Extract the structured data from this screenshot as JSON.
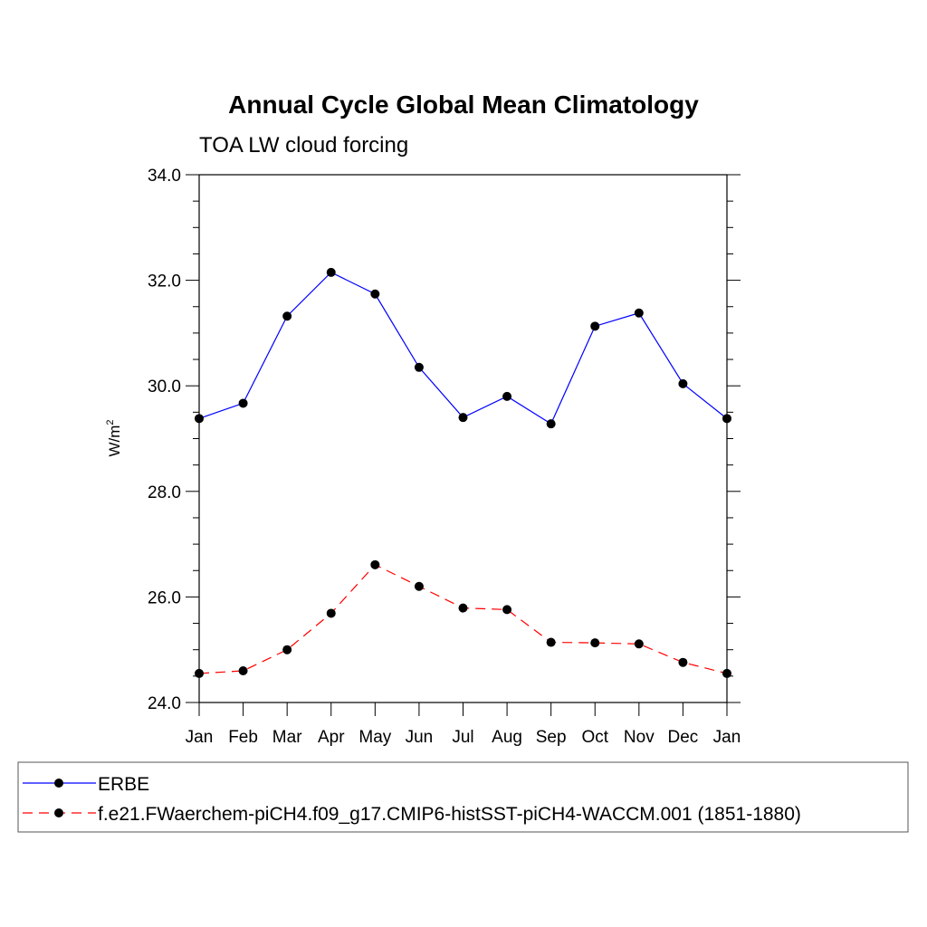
{
  "chart_data": {
    "type": "line",
    "title": "Annual Cycle Global Mean Climatology",
    "subtitle": "TOA LW cloud forcing",
    "ylabel_base": "W/m",
    "ylabel_sup": "2",
    "ylim": [
      24.0,
      34.0
    ],
    "y_ticks": [
      "24.0",
      "26.0",
      "28.0",
      "30.0",
      "32.0",
      "34.0"
    ],
    "y_tick_values": [
      24,
      26,
      28,
      30,
      32,
      34
    ],
    "y_minor_step": 0.5,
    "categories": [
      "Jan",
      "Feb",
      "Mar",
      "Apr",
      "May",
      "Jun",
      "Jul",
      "Aug",
      "Sep",
      "Oct",
      "Nov",
      "Dec",
      "Jan"
    ],
    "grid": false,
    "legend_position": "bottom",
    "series": [
      {
        "name": "ERBE",
        "color": "#0000ff",
        "dash": "solid",
        "marker": "filled-circle",
        "values": [
          29.38,
          29.67,
          31.32,
          32.15,
          31.74,
          30.35,
          29.4,
          29.8,
          29.28,
          31.13,
          31.38,
          30.04,
          29.38
        ]
      },
      {
        "name": "f.e21.FWaerchem-piCH4.f09_g17.CMIP6-histSST-piCH4-WACCM.001 (1851-1880)",
        "color": "#ff0000",
        "dash": "dashed",
        "marker": "filled-circle",
        "values": [
          24.55,
          24.6,
          25.0,
          25.69,
          26.61,
          26.2,
          25.79,
          25.76,
          25.14,
          25.13,
          25.11,
          24.76,
          24.55
        ]
      }
    ]
  }
}
